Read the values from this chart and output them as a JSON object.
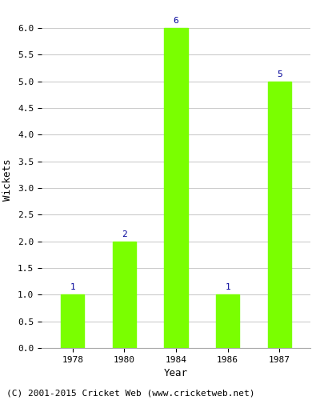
{
  "years": [
    "1978",
    "1980",
    "1984",
    "1986",
    "1987"
  ],
  "values": [
    1,
    2,
    6,
    1,
    5
  ],
  "bar_color": "#7aff00",
  "bar_edge_color": "#7aff00",
  "ylabel": "Wickets",
  "xlabel": "Year",
  "ylim": [
    0,
    6.3
  ],
  "yticks": [
    0.0,
    0.5,
    1.0,
    1.5,
    2.0,
    2.5,
    3.0,
    3.5,
    4.0,
    4.5,
    5.0,
    5.5,
    6.0
  ],
  "label_color": "#000099",
  "label_fontsize": 8,
  "axis_label_fontsize": 9,
  "tick_fontsize": 8,
  "caption": "(C) 2001-2015 Cricket Web (www.cricketweb.net)",
  "caption_fontsize": 8,
  "background_color": "#ffffff",
  "grid_color": "#cccccc",
  "bar_width": 0.45
}
